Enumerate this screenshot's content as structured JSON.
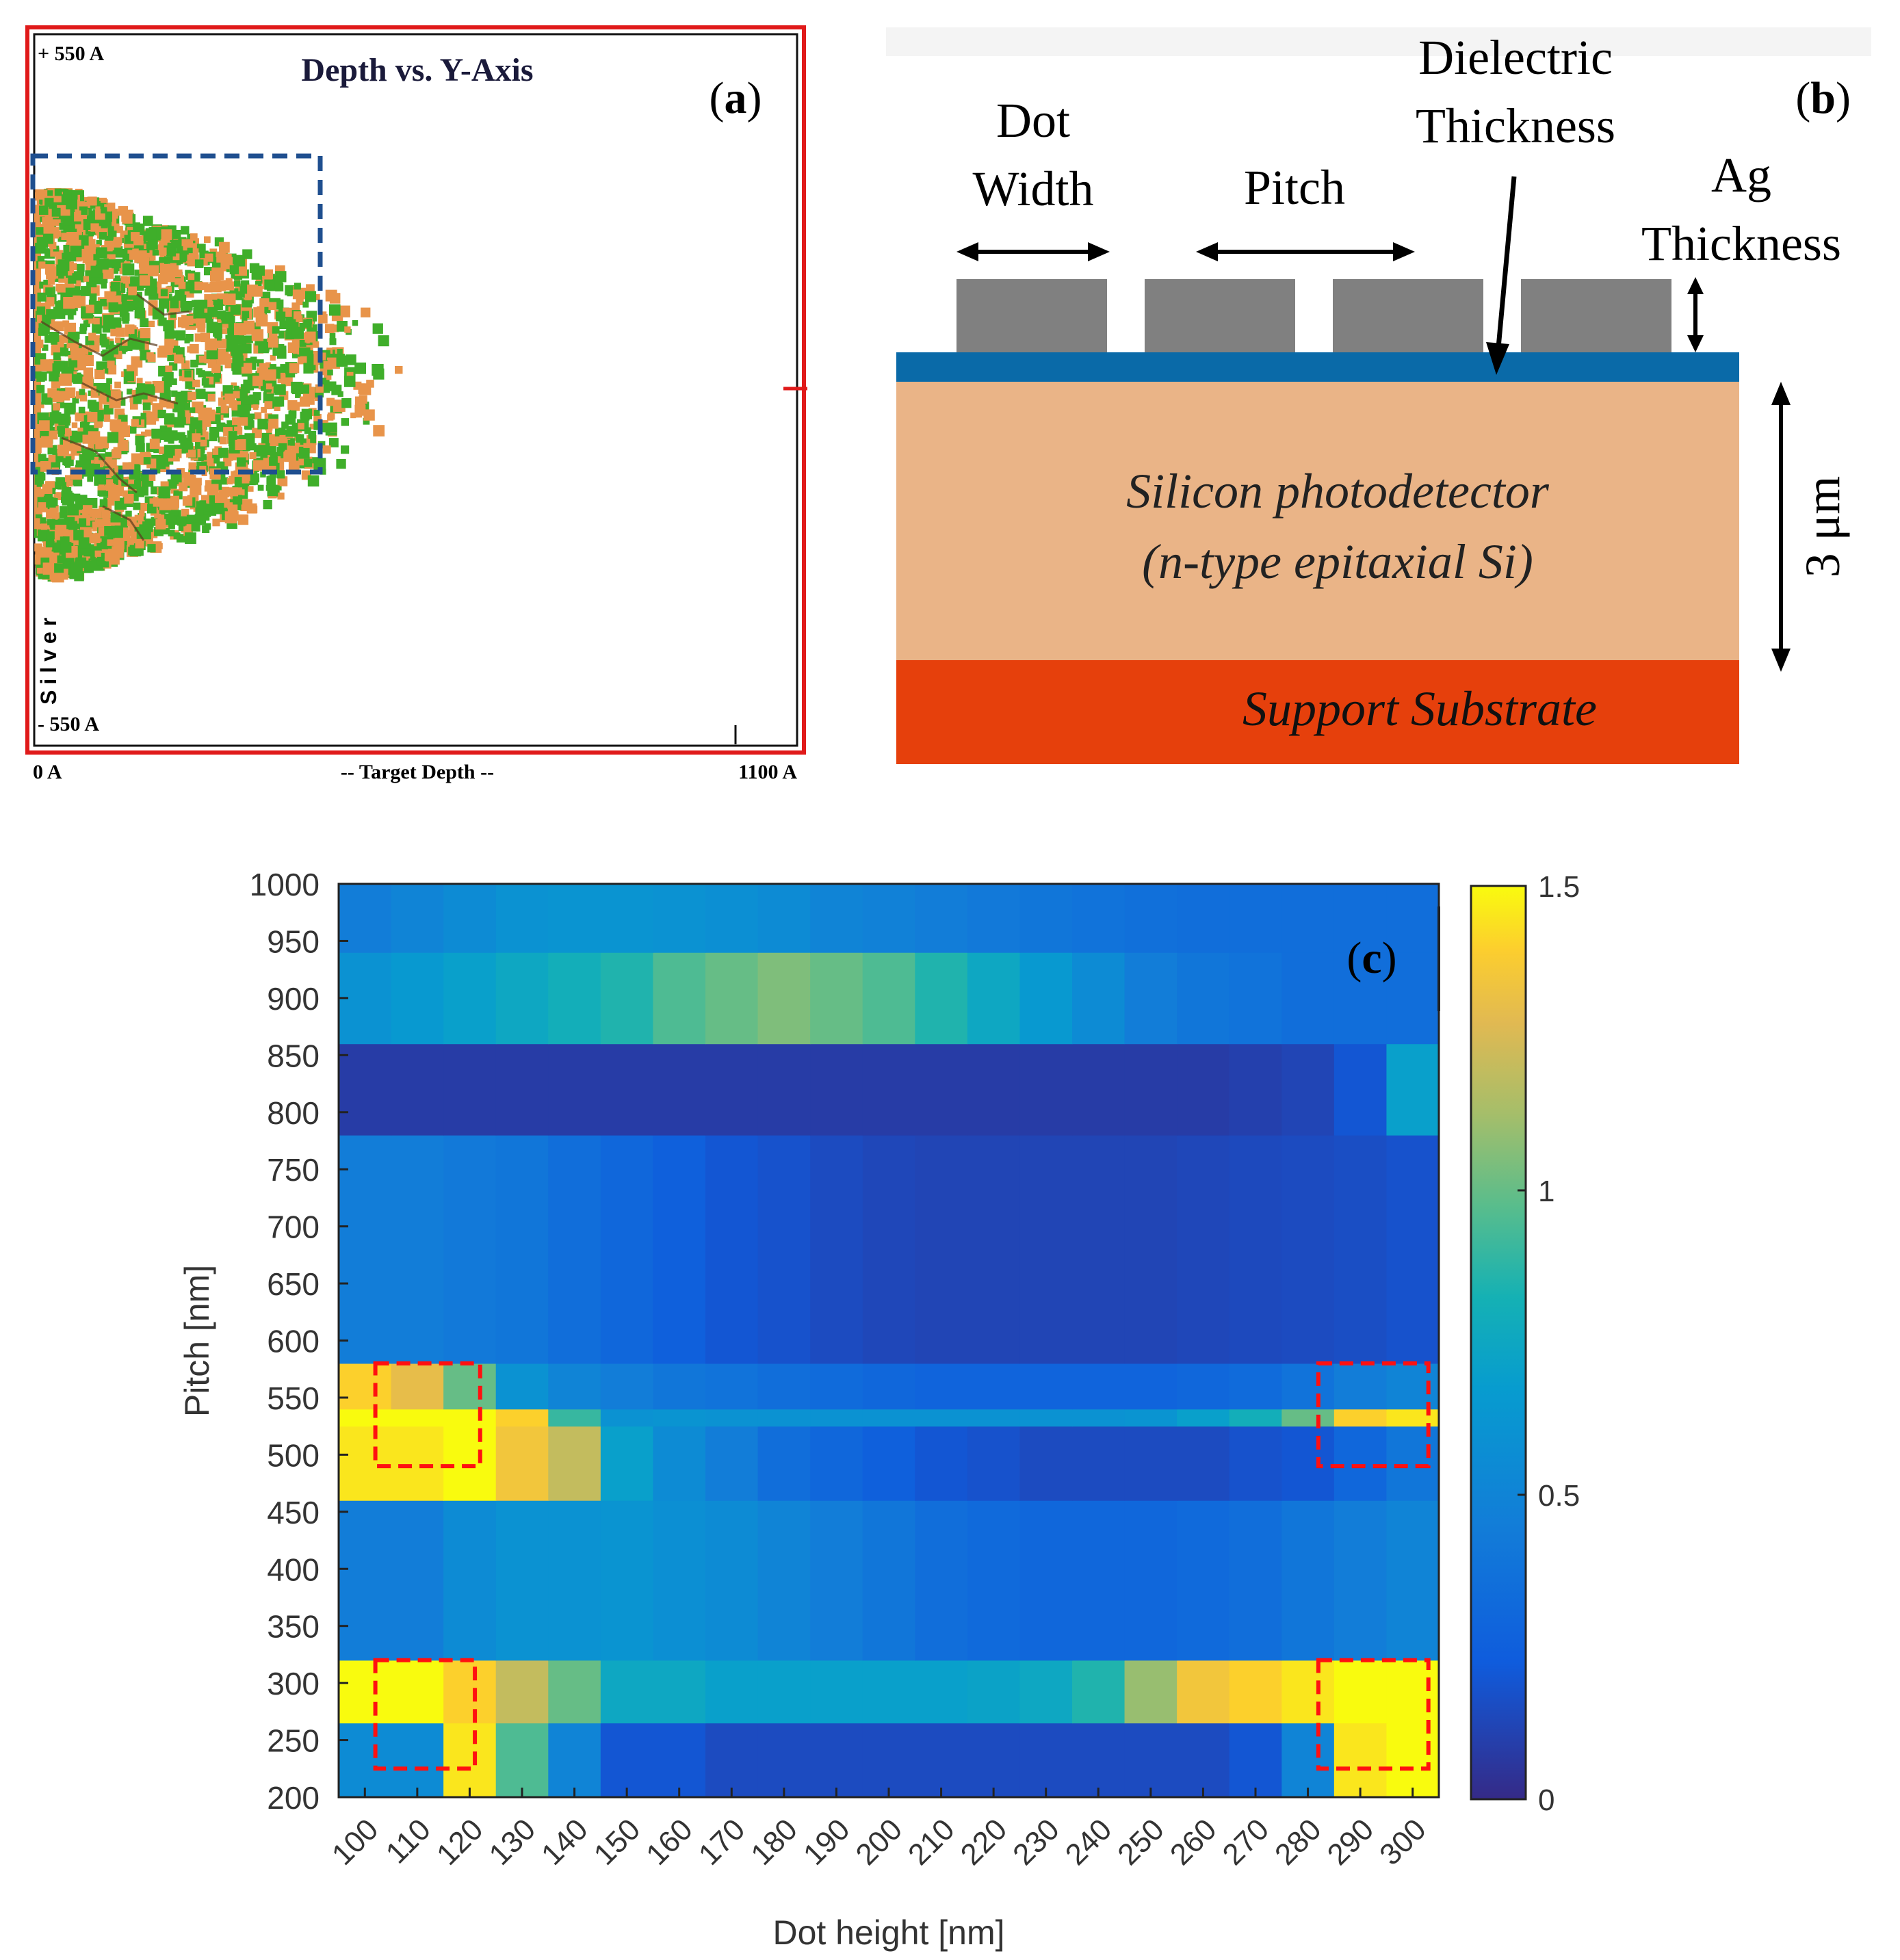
{
  "panel_a": {
    "label": "a",
    "title": "Depth vs. Y-Axis",
    "y_top": "+ 550 A",
    "y_bottom": "- 550 A",
    "x_left": "0 A",
    "x_mid": "-- Target Depth --",
    "x_right": "1100 A",
    "side_label": "Silver",
    "colors": {
      "border": "#e01a1a",
      "ion_a": "#3fae2a",
      "ion_b": "#e8944a",
      "box": "#1f4f8f"
    }
  },
  "panel_b": {
    "label": "b",
    "dot_width": [
      "Dot",
      "Width"
    ],
    "pitch": "Pitch",
    "dielectric": [
      "Dielectric",
      "Thickness"
    ],
    "ag": [
      "Ag",
      "Thickness"
    ],
    "detector": [
      "Silicon photodetector",
      "(n-type epitaxial Si)"
    ],
    "substrate": "Support Substrate",
    "thickness": "3 μm",
    "colors": {
      "dot": "#808080",
      "dielectric": "#0a6aa8",
      "silicon": "#eab487",
      "substrate": "#e6400c"
    }
  },
  "chart_data": {
    "type": "heatmap",
    "label": "c",
    "title": "",
    "xlabel": "Dot height [nm]",
    "ylabel": "Pitch [nm]",
    "x_ticks": [
      100,
      110,
      120,
      130,
      140,
      150,
      160,
      170,
      180,
      190,
      200,
      210,
      220,
      230,
      240,
      250,
      260,
      270,
      280,
      290,
      300
    ],
    "y_ticks": [
      200,
      250,
      300,
      350,
      400,
      450,
      500,
      550,
      600,
      650,
      700,
      750,
      800,
      850,
      900,
      950,
      1000
    ],
    "x": [
      100,
      110,
      120,
      130,
      140,
      150,
      160,
      170,
      180,
      190,
      200,
      210,
      220,
      230,
      240,
      250,
      260,
      270,
      280,
      290,
      300
    ],
    "y_range": [
      200,
      1000
    ],
    "z_range": [
      0,
      1.5
    ],
    "colorbar_ticks": [
      "0",
      "0.5",
      "1",
      "1.5"
    ],
    "colormap": "parula",
    "bands": [
      {
        "pitch": [
          200,
          265
        ],
        "values": [
          0.55,
          0.55,
          1.45,
          0.95,
          0.5,
          0.2,
          0.2,
          0.15,
          0.15,
          0.15,
          0.15,
          0.15,
          0.15,
          0.15,
          0.15,
          0.15,
          0.15,
          0.2,
          0.5,
          1.45,
          1.5
        ]
      },
      {
        "pitch": [
          265,
          320
        ],
        "values": [
          1.5,
          1.5,
          1.4,
          1.2,
          1.0,
          0.75,
          0.75,
          0.7,
          0.7,
          0.7,
          0.7,
          0.7,
          0.72,
          0.75,
          0.85,
          1.1,
          1.35,
          1.4,
          1.45,
          1.5,
          1.5
        ]
      },
      {
        "pitch": [
          320,
          460
        ],
        "values": [
          0.45,
          0.45,
          0.55,
          0.6,
          0.6,
          0.62,
          0.58,
          0.55,
          0.5,
          0.45,
          0.4,
          0.35,
          0.32,
          0.3,
          0.3,
          0.3,
          0.32,
          0.35,
          0.4,
          0.45,
          0.5
        ]
      },
      {
        "pitch": [
          460,
          525
        ],
        "values": [
          1.45,
          1.45,
          1.5,
          1.35,
          1.2,
          0.7,
          0.55,
          0.45,
          0.35,
          0.3,
          0.25,
          0.2,
          0.18,
          0.15,
          0.15,
          0.15,
          0.15,
          0.18,
          0.2,
          0.3,
          0.4
        ]
      },
      {
        "pitch": [
          525,
          540
        ],
        "values": [
          1.5,
          1.5,
          1.5,
          1.4,
          0.9,
          0.6,
          0.62,
          0.6,
          0.6,
          0.6,
          0.6,
          0.6,
          0.6,
          0.6,
          0.6,
          0.62,
          0.7,
          0.8,
          1.0,
          1.4,
          1.45
        ]
      },
      {
        "pitch": [
          540,
          580
        ],
        "values": [
          1.4,
          1.3,
          1.0,
          0.6,
          0.5,
          0.45,
          0.4,
          0.38,
          0.35,
          0.33,
          0.3,
          0.28,
          0.28,
          0.28,
          0.28,
          0.28,
          0.3,
          0.33,
          0.38,
          0.45,
          0.5
        ]
      },
      {
        "pitch": [
          580,
          780
        ],
        "values": [
          0.45,
          0.45,
          0.42,
          0.4,
          0.35,
          0.3,
          0.25,
          0.2,
          0.18,
          0.15,
          0.13,
          0.12,
          0.12,
          0.12,
          0.12,
          0.12,
          0.13,
          0.14,
          0.15,
          0.16,
          0.18
        ]
      },
      {
        "pitch": [
          780,
          860
        ],
        "values": [
          0.08,
          0.08,
          0.08,
          0.08,
          0.08,
          0.08,
          0.08,
          0.08,
          0.08,
          0.08,
          0.08,
          0.08,
          0.08,
          0.08,
          0.08,
          0.08,
          0.08,
          0.1,
          0.12,
          0.2,
          0.7
        ]
      },
      {
        "pitch": [
          860,
          940
        ],
        "values": [
          0.6,
          0.65,
          0.7,
          0.75,
          0.8,
          0.85,
          0.95,
          1.0,
          1.05,
          1.0,
          0.95,
          0.85,
          0.75,
          0.65,
          0.55,
          0.45,
          0.4,
          0.38,
          0.35,
          0.35,
          0.35
        ]
      },
      {
        "pitch": [
          940,
          1000
        ],
        "values": [
          0.45,
          0.5,
          0.55,
          0.6,
          0.62,
          0.62,
          0.6,
          0.58,
          0.55,
          0.5,
          0.48,
          0.45,
          0.42,
          0.4,
          0.38,
          0.36,
          0.35,
          0.35,
          0.35,
          0.35,
          0.35
        ]
      }
    ],
    "highlight_boxes": [
      {
        "x": [
          102,
          122
        ],
        "y": [
          490,
          580
        ]
      },
      {
        "x": [
          102,
          121
        ],
        "y": [
          225,
          320
        ]
      },
      {
        "x": [
          282,
          303
        ],
        "y": [
          490,
          580
        ]
      },
      {
        "x": [
          282,
          303
        ],
        "y": [
          225,
          320
        ]
      }
    ]
  }
}
